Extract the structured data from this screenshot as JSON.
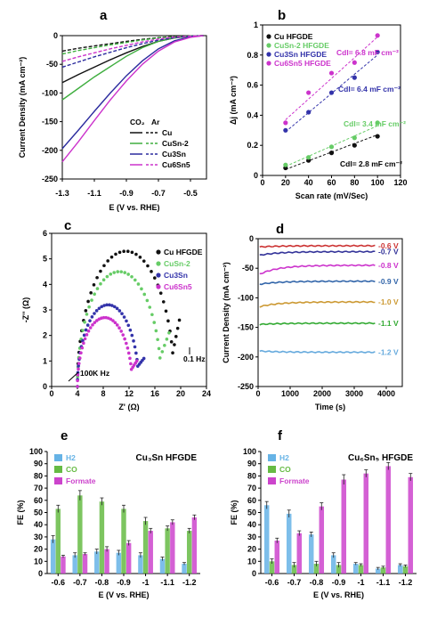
{
  "chart_data": [
    {
      "id": "a",
      "type": "line",
      "panel_label": "a",
      "xlabel": "E (V vs. RHE)",
      "ylabel": "Current Density (mA cm⁻²)",
      "xlim": [
        -1.3,
        -0.4
      ],
      "ylim": [
        -250,
        0
      ],
      "xticks": [
        -1.3,
        -1.1,
        -0.9,
        -0.7,
        -0.5
      ],
      "xtick_labels": [
        "-1.3",
        "-1.1",
        "-0.9",
        "-0.7",
        "-0.5"
      ],
      "yticks": [
        -250,
        -200,
        -150,
        -100,
        -50,
        0
      ],
      "ytick_labels": [
        "-250",
        "-200",
        "-150",
        "-100",
        "-50",
        "0"
      ],
      "legend_header": [
        "CO₂",
        "Ar"
      ],
      "legend": [
        {
          "name": "Cu",
          "color": "#111111"
        },
        {
          "name": "CuSn-2",
          "color": "#3fae3f"
        },
        {
          "name": "Cu3Sn",
          "color": "#2b2b9e"
        },
        {
          "name": "Cu6Sn5",
          "color": "#cc33cc"
        }
      ],
      "series": [
        {
          "material": "Cu",
          "gas": "CO2",
          "color": "#111111",
          "dash": false,
          "x": [
            -1.3,
            -1.2,
            -1.1,
            -1.0,
            -0.9,
            -0.8,
            -0.7,
            -0.6,
            -0.5,
            -0.42
          ],
          "y": [
            -82,
            -68,
            -55,
            -42,
            -30,
            -19,
            -10,
            -4,
            -1,
            0
          ]
        },
        {
          "material": "Cu",
          "gas": "Ar",
          "color": "#111111",
          "dash": true,
          "x": [
            -1.3,
            -1.2,
            -1.1,
            -1.0,
            -0.9,
            -0.8,
            -0.7,
            -0.6,
            -0.5,
            -0.42
          ],
          "y": [
            -27,
            -22,
            -18,
            -14,
            -10,
            -6.5,
            -3.5,
            -1.5,
            -0.5,
            0
          ]
        },
        {
          "material": "CuSn-2",
          "gas": "CO2",
          "color": "#3fae3f",
          "dash": false,
          "x": [
            -1.3,
            -1.2,
            -1.1,
            -1.0,
            -0.9,
            -0.8,
            -0.7,
            -0.6,
            -0.5,
            -0.42
          ],
          "y": [
            -112,
            -92,
            -72,
            -54,
            -36,
            -21,
            -10,
            -4,
            -1,
            0
          ]
        },
        {
          "material": "CuSn-2",
          "gas": "Ar",
          "color": "#3fae3f",
          "dash": true,
          "x": [
            -1.3,
            -1.2,
            -1.1,
            -1.0,
            -0.9,
            -0.8,
            -0.7,
            -0.6,
            -0.5,
            -0.42
          ],
          "y": [
            -32,
            -26,
            -21,
            -16,
            -12,
            -7.5,
            -4,
            -1.8,
            -0.6,
            0
          ]
        },
        {
          "material": "Cu3Sn",
          "gas": "CO2",
          "color": "#2b2b9e",
          "dash": false,
          "x": [
            -1.3,
            -1.2,
            -1.1,
            -1.0,
            -0.9,
            -0.8,
            -0.7,
            -0.6,
            -0.5,
            -0.42
          ],
          "y": [
            -197,
            -165,
            -132,
            -100,
            -70,
            -44,
            -23,
            -9,
            -2,
            0
          ]
        },
        {
          "material": "Cu3Sn",
          "gas": "Ar",
          "color": "#2b2b9e",
          "dash": true,
          "x": [
            -1.3,
            -1.2,
            -1.1,
            -1.0,
            -0.9,
            -0.8,
            -0.7,
            -0.6,
            -0.5,
            -0.42
          ],
          "y": [
            -55,
            -46,
            -37,
            -29,
            -21,
            -14,
            -8,
            -3.5,
            -1,
            0
          ]
        },
        {
          "material": "Cu6Sn5",
          "gas": "CO2",
          "color": "#cc33cc",
          "dash": false,
          "x": [
            -1.3,
            -1.2,
            -1.1,
            -1.0,
            -0.9,
            -0.8,
            -0.7,
            -0.6,
            -0.5,
            -0.42
          ],
          "y": [
            -220,
            -185,
            -148,
            -112,
            -79,
            -50,
            -27,
            -11,
            -3,
            0
          ]
        },
        {
          "material": "Cu6Sn5",
          "gas": "Ar",
          "color": "#cc33cc",
          "dash": true,
          "x": [
            -1.3,
            -1.2,
            -1.1,
            -1.0,
            -0.9,
            -0.8,
            -0.7,
            -0.6,
            -0.5,
            -0.42
          ],
          "y": [
            -45,
            -37,
            -30,
            -23,
            -17,
            -11,
            -6,
            -2.5,
            -0.8,
            0
          ]
        }
      ]
    },
    {
      "id": "b",
      "type": "scatter",
      "panel_label": "b",
      "xlabel": "Scan rate (mV/Sec)",
      "ylabel": "Δj  (mA cm⁻²)",
      "xlim": [
        0,
        120
      ],
      "ylim": [
        0,
        1
      ],
      "xticks": [
        0,
        20,
        40,
        60,
        80,
        100,
        120
      ],
      "xtick_labels": [
        "0",
        "20",
        "40",
        "60",
        "80",
        "100",
        "120"
      ],
      "yticks": [
        0,
        0.2,
        0.4,
        0.6,
        0.8,
        1
      ],
      "ytick_labels": [
        "0",
        "0.2",
        "0.4",
        "0.6",
        "0.8",
        "1"
      ],
      "series": [
        {
          "name": "Cu HFGDE",
          "color": "#111111",
          "x": [
            20,
            40,
            60,
            80,
            100
          ],
          "y": [
            0.05,
            0.1,
            0.15,
            0.2,
            0.26
          ],
          "fit": [
            [
              20,
              0.04
            ],
            [
              100,
              0.27
            ]
          ],
          "annotation": "Cdl= 2.8 mF cm⁻²"
        },
        {
          "name": "CuSn-2 HFGDE",
          "color": "#66cc66",
          "x": [
            20,
            40,
            60,
            80,
            100
          ],
          "y": [
            0.07,
            0.12,
            0.19,
            0.25,
            0.35
          ],
          "fit": [
            [
              20,
              0.06
            ],
            [
              100,
              0.33
            ]
          ],
          "annotation": "Cdl= 3.4 mF cm⁻²"
        },
        {
          "name": "Cu3Sn HFGDE",
          "color": "#3333aa",
          "x": [
            20,
            40,
            60,
            80,
            100
          ],
          "y": [
            0.3,
            0.42,
            0.55,
            0.65,
            0.82
          ],
          "fit": [
            [
              20,
              0.29
            ],
            [
              100,
              0.8
            ]
          ],
          "annotation": "Cdl= 6.4 mF cm⁻²"
        },
        {
          "name": "Cu6Sn5 HFGDE",
          "color": "#cc33cc",
          "x": [
            20,
            40,
            60,
            80,
            100
          ],
          "y": [
            0.35,
            0.55,
            0.68,
            0.75,
            0.93
          ],
          "fit": [
            [
              20,
              0.37
            ],
            [
              100,
              0.92
            ]
          ],
          "annotation": "Cdl= 6.8 mF cm⁻²"
        }
      ]
    },
    {
      "id": "c",
      "type": "scatter",
      "panel_label": "c",
      "xlabel": "Z' (Ω)",
      "ylabel": "-Z'' (Ω)",
      "xlim": [
        0,
        24
      ],
      "ylim": [
        0,
        6
      ],
      "xticks": [
        0,
        4,
        8,
        12,
        16,
        20,
        24
      ],
      "xtick_labels": [
        "0",
        "4",
        "8",
        "12",
        "16",
        "20",
        "24"
      ],
      "yticks": [
        0,
        1,
        2,
        3,
        4,
        5,
        6
      ],
      "ytick_labels": [
        "0",
        "1",
        "2",
        "3",
        "4",
        "5",
        "6"
      ],
      "annotations": [
        "100K Hz",
        "0.1 Hz"
      ],
      "series": [
        {
          "name": "Cu HFGDE",
          "color": "#111111",
          "arc": {
            "x0": 4.0,
            "x1": 19.0,
            "height": 5.3,
            "tail_x": 19.8,
            "tail_y": 2.6
          }
        },
        {
          "name": "CuSn-2",
          "color": "#66cc66",
          "arc": {
            "x0": 4.0,
            "x1": 17.0,
            "height": 4.5,
            "tail_x": 18.2,
            "tail_y": 2.1
          }
        },
        {
          "name": "Cu3Sn",
          "color": "#3333aa",
          "arc": {
            "x0": 4.0,
            "x1": 13.5,
            "height": 3.2,
            "tail_x": 14.3,
            "tail_y": 1.1
          }
        },
        {
          "name": "Cu6Sn5",
          "color": "#cc33cc",
          "arc": {
            "x0": 4.0,
            "x1": 12.5,
            "height": 2.7,
            "tail_x": 13.2,
            "tail_y": 1.0
          }
        }
      ]
    },
    {
      "id": "d",
      "type": "line",
      "panel_label": "d",
      "xlabel": "Time (s)",
      "ylabel": "Current Density (mA cm⁻²)",
      "xlim": [
        0,
        4500
      ],
      "ylim": [
        -250,
        0
      ],
      "xticks": [
        0,
        1000,
        2000,
        3000,
        4000
      ],
      "xtick_labels": [
        "0",
        "1000",
        "2000",
        "3000",
        "4000"
      ],
      "yticks": [
        -250,
        -200,
        -150,
        -100,
        -50,
        0
      ],
      "ytick_labels": [
        "-250",
        "-200",
        "-150",
        "-100",
        "-50",
        "0"
      ],
      "series": [
        {
          "name": "-0.6 V",
          "color": "#cc3333",
          "y_start": -14,
          "y_end": -12
        },
        {
          "name": "-0.7 V",
          "color": "#333399",
          "y_start": -28,
          "y_end": -22
        },
        {
          "name": "-0.8 V",
          "color": "#cc33cc",
          "y_start": -60,
          "y_end": -45
        },
        {
          "name": "-0.9 V",
          "color": "#3366aa",
          "y_start": -77,
          "y_end": -72
        },
        {
          "name": "-1.0 V",
          "color": "#cc9933",
          "y_start": -115,
          "y_end": -107
        },
        {
          "name": "-1.1 V",
          "color": "#33aa33",
          "y_start": -145,
          "y_end": -143
        },
        {
          "name": "-1.2 V",
          "color": "#66aadd",
          "y_start": -190,
          "y_end": -192
        }
      ]
    },
    {
      "id": "e",
      "type": "bar",
      "panel_label": "e",
      "title": "Cu₃Sn HFGDE",
      "xlabel": "E (V vs. RHE)",
      "ylabel": "FE (%)",
      "ylim": [
        0,
        100
      ],
      "yticks": [
        0,
        10,
        20,
        30,
        40,
        50,
        60,
        70,
        80,
        90,
        100
      ],
      "ytick_labels": [
        "0",
        "10",
        "20",
        "30",
        "40",
        "50",
        "60",
        "70",
        "80",
        "90",
        "100"
      ],
      "categories": [
        "-0.6",
        "-0.7",
        "-0.8",
        "-0.9",
        "-1",
        "-1.1",
        "-1.2"
      ],
      "series": [
        {
          "name": "H2",
          "color": "#66b3e6",
          "values": [
            28,
            15,
            18,
            17,
            15,
            12,
            8
          ],
          "errors": [
            3,
            2,
            2,
            2,
            2,
            1.5,
            1
          ]
        },
        {
          "name": "CO",
          "color": "#66bb44",
          "values": [
            53,
            64,
            59,
            53,
            43,
            37,
            35
          ],
          "errors": [
            3,
            4,
            3,
            3,
            3,
            2,
            2
          ]
        },
        {
          "name": "Formate",
          "color": "#cc44cc",
          "values": [
            14,
            16,
            20,
            25,
            35,
            42,
            46
          ],
          "errors": [
            1,
            1,
            2,
            2,
            2,
            2,
            2
          ]
        }
      ]
    },
    {
      "id": "f",
      "type": "bar",
      "panel_label": "f",
      "title": "Cu₆Sn₅ HFGDE",
      "xlabel": "E (V vs. RHE)",
      "ylabel": "FE (%)",
      "ylim": [
        0,
        100
      ],
      "yticks": [
        0,
        10,
        20,
        30,
        40,
        50,
        60,
        70,
        80,
        90,
        100
      ],
      "ytick_labels": [
        "0",
        "10",
        "20",
        "30",
        "40",
        "50",
        "60",
        "70",
        "80",
        "90",
        "100"
      ],
      "categories": [
        "-0.6",
        "-0.7",
        "-0.8",
        "-0.9",
        "-1",
        "-1.1",
        "-1.2"
      ],
      "series": [
        {
          "name": "H2",
          "color": "#66b3e6",
          "values": [
            56,
            49,
            32,
            15,
            8,
            4,
            7
          ],
          "errors": [
            3,
            3,
            2,
            2,
            1,
            1,
            1
          ]
        },
        {
          "name": "CO",
          "color": "#66bb44",
          "values": [
            10,
            7,
            8,
            7,
            7,
            5,
            6
          ],
          "errors": [
            2,
            2,
            2,
            2,
            1,
            1,
            1
          ]
        },
        {
          "name": "Formate",
          "color": "#cc44cc",
          "values": [
            27,
            33,
            55,
            77,
            82,
            88,
            79
          ],
          "errors": [
            2,
            2,
            3,
            4,
            3,
            3,
            3
          ]
        }
      ]
    }
  ]
}
